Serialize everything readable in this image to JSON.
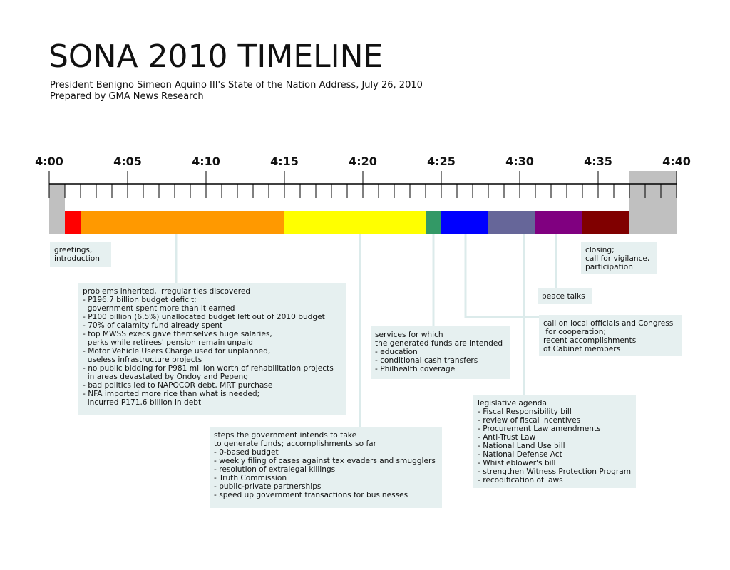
{
  "header": {
    "title": "SONA 2010 TIMELINE",
    "subtitle": "President Benigno Simeon Aquino III's State of the Nation Address, July 26, 2010",
    "credit": "Prepared by GMA News Research"
  },
  "timeline": {
    "start_minute": 0,
    "end_minute": 40,
    "tick_labels": [
      "4:00",
      "4:05",
      "4:10",
      "4:15",
      "4:20",
      "4:25",
      "4:30",
      "4:35",
      "4:40"
    ],
    "segments": [
      {
        "start": 0,
        "end": 1,
        "color": "#c0c0c0"
      },
      {
        "start": 1,
        "end": 2,
        "color": "#ff0000"
      },
      {
        "start": 2,
        "end": 15,
        "color": "#ff9900"
      },
      {
        "start": 15,
        "end": 24,
        "color": "#ffff00"
      },
      {
        "start": 24,
        "end": 25,
        "color": "#339966"
      },
      {
        "start": 25,
        "end": 28,
        "color": "#0000ff"
      },
      {
        "start": 28,
        "end": 31,
        "color": "#666699"
      },
      {
        "start": 31,
        "end": 34,
        "color": "#800080"
      },
      {
        "start": 34,
        "end": 37,
        "color": "#800000"
      },
      {
        "start": 37,
        "end": 40,
        "color": "#c0c0c0"
      }
    ]
  },
  "annotations": {
    "greetings": [
      "greetings,",
      "introduction"
    ],
    "problems": [
      "problems inherited, irregularities discovered",
      "- P196.7 billion budget deficit;",
      "  government spent more than it earned",
      "- P100 billion (6.5%) unallocated budget left out of 2010 budget",
      "- 70% of calamity fund already spent",
      "- top MWSS execs gave themselves huge salaries,",
      "  perks while retirees' pension remain unpaid",
      "- Motor Vehicle Users Charge used for unplanned,",
      "  useless infrastructure projects",
      "- no public bidding for P981 million worth of rehabilitation projects",
      "  in areas devastated by Ondoy and Pepeng",
      "- bad politics led to NAPOCOR debt, MRT purchase",
      "- NFA imported more rice than what is needed;",
      "  incurred P171.6 billion in debt"
    ],
    "steps": [
      "steps the government intends to take",
      "to generate funds; accomplishments so far",
      "- 0-based budget",
      "- weekly filing of cases against tax evaders and smugglers",
      "- resolution of extralegal killings",
      "- Truth Commission",
      "- public-private partnerships",
      "- speed up government transactions for businesses"
    ],
    "services": [
      "services for which",
      "the generated funds are intended",
      "- education",
      "- conditional cash transfers",
      "- Philhealth coverage"
    ],
    "legislative": [
      "legislative agenda",
      "- Fiscal Responsibility bill",
      "- review of fiscal incentives",
      "- Procurement Law amendments",
      "- Anti-Trust Law",
      "- National Land Use bill",
      "- National Defense Act",
      "- Whistleblower's bill",
      "- strengthen Witness Protection Program",
      "- recodification of laws"
    ],
    "local": [
      "call on local officials and Congress",
      " for cooperation;",
      "recent accomplishments",
      "of Cabinet members"
    ],
    "peace": [
      "peace talks"
    ],
    "closing": [
      "closing;",
      "call for vigilance,",
      "participation"
    ]
  }
}
